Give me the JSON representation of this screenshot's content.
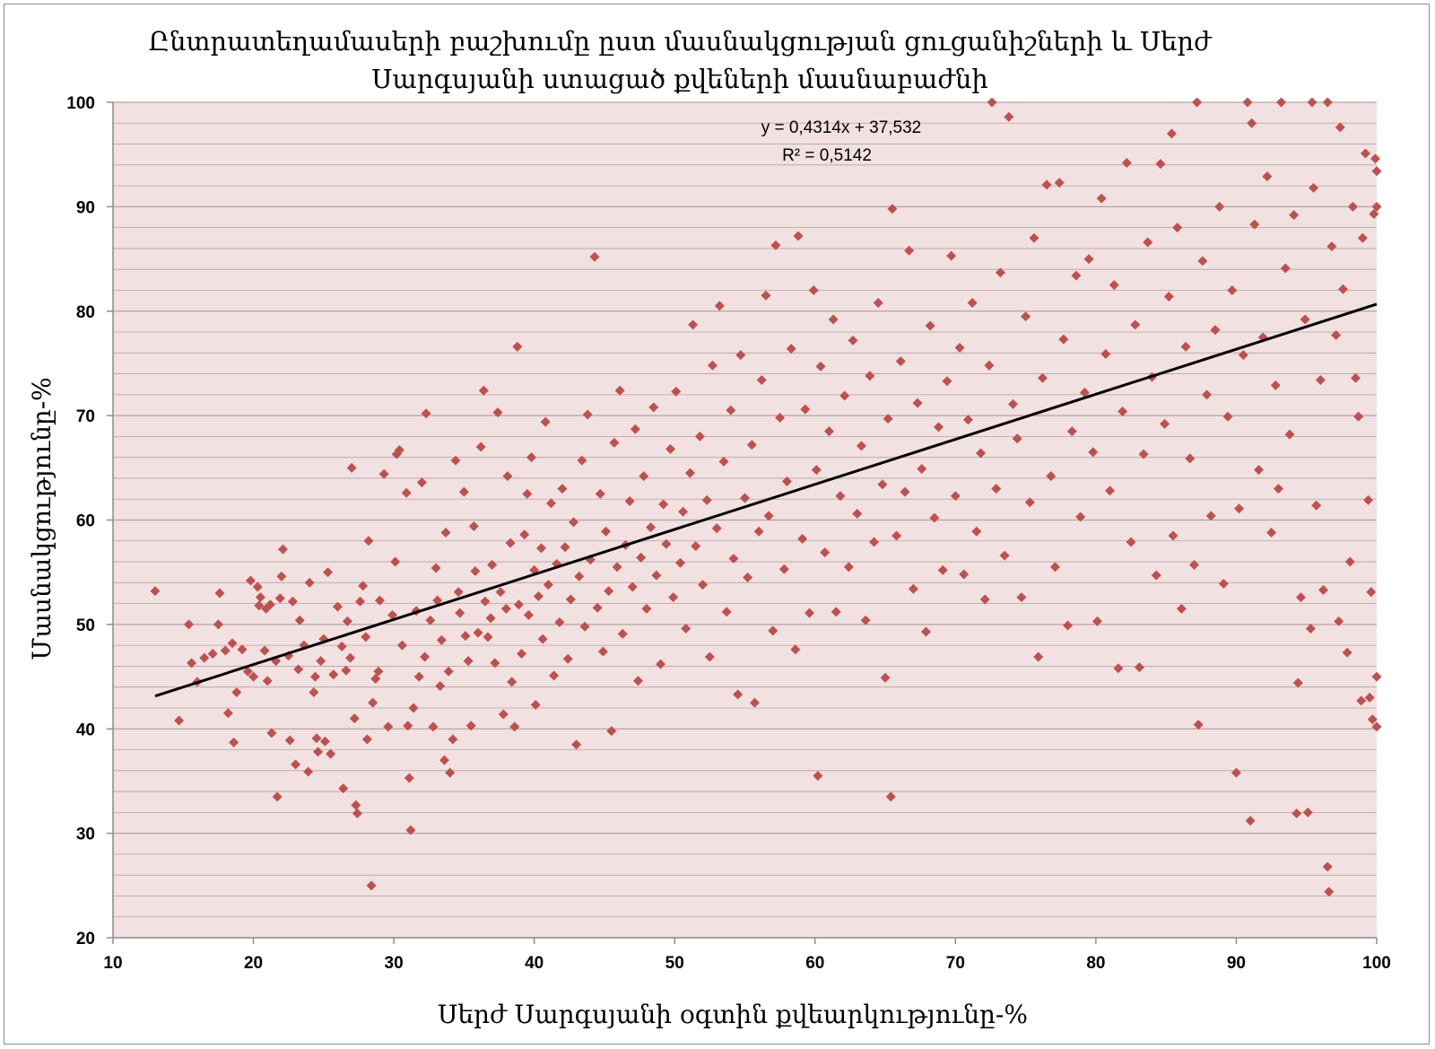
{
  "colors": {
    "plot_background": "#f2e1e1",
    "gridline": "#b5a3a3",
    "marker": "#c0504d",
    "trendline": "#000000",
    "axis": "#8c8c8c"
  },
  "chart_data": {
    "type": "scatter",
    "title": [
      "Ընտրատեղամասերի բաշխումը ըստ մասնակցության ցուցանիշների և Սերժ",
      "Սարգսյանի ստացած քվեների մասնաբաժնի"
    ],
    "xlabel": "Սերժ Սարգսյանի օգտին քվեարկությունը-%",
    "ylabel": "Մասնակցությունը-%",
    "xlim": [
      10,
      100
    ],
    "ylim": [
      20,
      100
    ],
    "xticks": [
      10,
      20,
      30,
      40,
      50,
      60,
      70,
      80,
      90,
      100
    ],
    "yticks": [
      20,
      30,
      40,
      50,
      60,
      70,
      80,
      90,
      100
    ],
    "grid": true,
    "marker": "diamond",
    "trendline": {
      "slope": 0.4314,
      "intercept": 37.532,
      "x_range": [
        13,
        100
      ],
      "equation": "y = 0,4314x + 37,532",
      "r2": "R² = 0,5142"
    },
    "points": [
      [
        13,
        53.2
      ],
      [
        14.7,
        40.8
      ],
      [
        15.4,
        50
      ],
      [
        15.6,
        46.3
      ],
      [
        16,
        44.5
      ],
      [
        16.5,
        46.8
      ],
      [
        17.1,
        47.2
      ],
      [
        17.5,
        50
      ],
      [
        17.6,
        53
      ],
      [
        18,
        47.5
      ],
      [
        18.2,
        41.5
      ],
      [
        18.5,
        48.2
      ],
      [
        18.6,
        38.7
      ],
      [
        18.8,
        43.5
      ],
      [
        19.2,
        47.6
      ],
      [
        19.6,
        45.5
      ],
      [
        19.8,
        54.2
      ],
      [
        20,
        45
      ],
      [
        20.3,
        53.6
      ],
      [
        20.4,
        51.8
      ],
      [
        20.5,
        52.6
      ],
      [
        20.8,
        47.5
      ],
      [
        20.9,
        51.5
      ],
      [
        21,
        44.6
      ],
      [
        21.2,
        51.9
      ],
      [
        21.3,
        39.6
      ],
      [
        21.6,
        46.5
      ],
      [
        21.7,
        33.5
      ],
      [
        21.9,
        52.5
      ],
      [
        22,
        54.6
      ],
      [
        22.1,
        57.2
      ],
      [
        22.5,
        47
      ],
      [
        22.6,
        38.9
      ],
      [
        22.8,
        52.2
      ],
      [
        23,
        36.6
      ],
      [
        23.2,
        45.7
      ],
      [
        23.3,
        50.4
      ],
      [
        23.6,
        48
      ],
      [
        23.9,
        35.9
      ],
      [
        24,
        54
      ],
      [
        24.3,
        43.5
      ],
      [
        24.4,
        45
      ],
      [
        24.5,
        39.1
      ],
      [
        24.6,
        37.8
      ],
      [
        24.8,
        46.5
      ],
      [
        25,
        48.6
      ],
      [
        25.1,
        38.8
      ],
      [
        25.3,
        55
      ],
      [
        25.5,
        37.6
      ],
      [
        25.7,
        45.2
      ],
      [
        26,
        51.7
      ],
      [
        26.3,
        47.9
      ],
      [
        26.4,
        34.3
      ],
      [
        26.6,
        45.6
      ],
      [
        26.7,
        50.3
      ],
      [
        26.9,
        46.8
      ],
      [
        27,
        65
      ],
      [
        27.2,
        41
      ],
      [
        27.3,
        32.7
      ],
      [
        27.4,
        31.9
      ],
      [
        27.6,
        52.2
      ],
      [
        27.8,
        53.7
      ],
      [
        28,
        48.8
      ],
      [
        28.1,
        39
      ],
      [
        28.2,
        58
      ],
      [
        28.4,
        25
      ],
      [
        28.5,
        42.5
      ],
      [
        28.7,
        44.8
      ],
      [
        28.9,
        45.5
      ],
      [
        29,
        52.3
      ],
      [
        29.3,
        64.4
      ],
      [
        29.6,
        40.2
      ],
      [
        29.9,
        50.9
      ],
      [
        30.1,
        56
      ],
      [
        30.2,
        66.3
      ],
      [
        30.4,
        66.7
      ],
      [
        30.6,
        48
      ],
      [
        30.9,
        62.6
      ],
      [
        31,
        40.3
      ],
      [
        31.1,
        35.3
      ],
      [
        31.2,
        30.3
      ],
      [
        31.4,
        42
      ],
      [
        31.6,
        51.3
      ],
      [
        31.8,
        45
      ],
      [
        32,
        63.6
      ],
      [
        32.2,
        46.9
      ],
      [
        32.3,
        70.2
      ],
      [
        32.6,
        50.4
      ],
      [
        32.8,
        40.2
      ],
      [
        33,
        55.4
      ],
      [
        33.1,
        52.3
      ],
      [
        33.3,
        44.1
      ],
      [
        33.4,
        48.5
      ],
      [
        33.6,
        37
      ],
      [
        33.7,
        58.8
      ],
      [
        33.9,
        45.5
      ],
      [
        34,
        35.8
      ],
      [
        34.2,
        39
      ],
      [
        34.4,
        65.7
      ],
      [
        34.6,
        53.1
      ],
      [
        34.7,
        51.1
      ],
      [
        35,
        62.7
      ],
      [
        35.1,
        48.9
      ],
      [
        35.3,
        46.5
      ],
      [
        35.5,
        40.3
      ],
      [
        35.7,
        59.4
      ],
      [
        35.8,
        55.1
      ],
      [
        36,
        49.2
      ],
      [
        36.2,
        67
      ],
      [
        36.4,
        72.4
      ],
      [
        36.5,
        52.2
      ],
      [
        36.7,
        48.8
      ],
      [
        36.9,
        50.6
      ],
      [
        37,
        55.7
      ],
      [
        37.2,
        46.3
      ],
      [
        37.4,
        70.3
      ],
      [
        37.6,
        53.1
      ],
      [
        37.8,
        41.4
      ],
      [
        38,
        51.5
      ],
      [
        38.1,
        64.2
      ],
      [
        38.3,
        57.8
      ],
      [
        38.4,
        44.5
      ],
      [
        38.6,
        40.2
      ],
      [
        38.8,
        76.6
      ],
      [
        38.9,
        51.9
      ],
      [
        39.1,
        47.2
      ],
      [
        39.3,
        58.6
      ],
      [
        39.5,
        62.5
      ],
      [
        39.6,
        50.9
      ],
      [
        39.8,
        66
      ],
      [
        40,
        55.2
      ],
      [
        40.1,
        42.3
      ],
      [
        40.3,
        52.7
      ],
      [
        40.5,
        57.3
      ],
      [
        40.6,
        48.6
      ],
      [
        40.8,
        69.4
      ],
      [
        41,
        53.8
      ],
      [
        41.2,
        61.6
      ],
      [
        41.4,
        45.1
      ],
      [
        41.6,
        55.8
      ],
      [
        41.8,
        50.2
      ],
      [
        42,
        63
      ],
      [
        42.2,
        57.4
      ],
      [
        42.4,
        46.7
      ],
      [
        42.6,
        52.4
      ],
      [
        42.8,
        59.8
      ],
      [
        43,
        38.5
      ],
      [
        43.2,
        54.6
      ],
      [
        43.4,
        65.7
      ],
      [
        43.6,
        49.8
      ],
      [
        43.8,
        70.1
      ],
      [
        44,
        56.2
      ],
      [
        44.3,
        85.2
      ],
      [
        44.5,
        51.6
      ],
      [
        44.7,
        62.5
      ],
      [
        44.9,
        47.4
      ],
      [
        45.1,
        58.9
      ],
      [
        45.3,
        53.2
      ],
      [
        45.5,
        39.8
      ],
      [
        45.7,
        67.4
      ],
      [
        45.9,
        55.5
      ],
      [
        46.1,
        72.4
      ],
      [
        46.3,
        49.1
      ],
      [
        46.5,
        57.6
      ],
      [
        46.8,
        61.8
      ],
      [
        47,
        53.6
      ],
      [
        47.2,
        68.7
      ],
      [
        47.4,
        44.6
      ],
      [
        47.6,
        56.4
      ],
      [
        47.8,
        64.2
      ],
      [
        48,
        51.5
      ],
      [
        48.3,
        59.3
      ],
      [
        48.5,
        70.8
      ],
      [
        48.7,
        54.7
      ],
      [
        49,
        46.2
      ],
      [
        49.2,
        61.5
      ],
      [
        49.4,
        57.7
      ],
      [
        49.7,
        66.8
      ],
      [
        49.9,
        52.6
      ],
      [
        50.1,
        72.3
      ],
      [
        50.4,
        55.9
      ],
      [
        50.6,
        60.8
      ],
      [
        50.8,
        49.6
      ],
      [
        51.1,
        64.5
      ],
      [
        51.3,
        78.7
      ],
      [
        51.5,
        57.5
      ],
      [
        51.8,
        68
      ],
      [
        52,
        53.8
      ],
      [
        52.3,
        61.9
      ],
      [
        52.5,
        46.9
      ],
      [
        52.7,
        74.8
      ],
      [
        53,
        59.2
      ],
      [
        53.2,
        80.5
      ],
      [
        53.5,
        65.6
      ],
      [
        53.7,
        51.2
      ],
      [
        54,
        70.5
      ],
      [
        54.2,
        56.3
      ],
      [
        54.5,
        43.3
      ],
      [
        54.7,
        75.8
      ],
      [
        55,
        62.1
      ],
      [
        55.2,
        54.5
      ],
      [
        55.5,
        67.2
      ],
      [
        55.7,
        42.5
      ],
      [
        56,
        58.9
      ],
      [
        56.2,
        73.4
      ],
      [
        56.5,
        81.5
      ],
      [
        56.7,
        60.4
      ],
      [
        57,
        49.4
      ],
      [
        57.2,
        86.3
      ],
      [
        57.5,
        69.8
      ],
      [
        57.8,
        55.3
      ],
      [
        58,
        63.7
      ],
      [
        58.3,
        76.4
      ],
      [
        58.6,
        47.6
      ],
      [
        58.8,
        87.2
      ],
      [
        59.1,
        58.2
      ],
      [
        59.3,
        70.6
      ],
      [
        59.6,
        51.1
      ],
      [
        59.9,
        82
      ],
      [
        60.1,
        64.8
      ],
      [
        60.2,
        35.5
      ],
      [
        60.4,
        74.7
      ],
      [
        60.7,
        56.9
      ],
      [
        61,
        68.5
      ],
      [
        61.3,
        79.2
      ],
      [
        61.5,
        51.2
      ],
      [
        61.8,
        62.3
      ],
      [
        62.1,
        71.9
      ],
      [
        62.4,
        55.5
      ],
      [
        62.7,
        77.2
      ],
      [
        63,
        60.6
      ],
      [
        63.3,
        67.1
      ],
      [
        63.6,
        50.4
      ],
      [
        63.9,
        73.8
      ],
      [
        64.2,
        57.9
      ],
      [
        64.5,
        80.8
      ],
      [
        64.8,
        63.4
      ],
      [
        65,
        44.9
      ],
      [
        65.2,
        69.7
      ],
      [
        65.4,
        33.5
      ],
      [
        65.5,
        89.8
      ],
      [
        65.8,
        58.5
      ],
      [
        66.1,
        75.2
      ],
      [
        66.4,
        62.7
      ],
      [
        66.7,
        85.8
      ],
      [
        67,
        53.4
      ],
      [
        67.3,
        71.2
      ],
      [
        67.6,
        64.9
      ],
      [
        67.9,
        49.3
      ],
      [
        68.2,
        78.6
      ],
      [
        68.5,
        60.2
      ],
      [
        68.8,
        68.9
      ],
      [
        69.1,
        55.2
      ],
      [
        69.4,
        73.3
      ],
      [
        69.7,
        85.3
      ],
      [
        70,
        62.3
      ],
      [
        70.3,
        76.5
      ],
      [
        70.6,
        54.8
      ],
      [
        70.9,
        69.6
      ],
      [
        71.2,
        80.8
      ],
      [
        71.5,
        58.9
      ],
      [
        71.8,
        66.4
      ],
      [
        72.1,
        52.4
      ],
      [
        72.4,
        74.8
      ],
      [
        72.6,
        100
      ],
      [
        72.9,
        63
      ],
      [
        73.2,
        83.7
      ],
      [
        73.5,
        56.6
      ],
      [
        73.8,
        98.6
      ],
      [
        74.1,
        71.1
      ],
      [
        74.4,
        67.8
      ],
      [
        74.7,
        52.6
      ],
      [
        75,
        79.5
      ],
      [
        75.3,
        61.7
      ],
      [
        75.6,
        87
      ],
      [
        75.9,
        46.9
      ],
      [
        76.2,
        73.6
      ],
      [
        76.5,
        92.1
      ],
      [
        76.8,
        64.2
      ],
      [
        77.1,
        55.5
      ],
      [
        77.4,
        92.3
      ],
      [
        77.7,
        77.3
      ],
      [
        78,
        49.9
      ],
      [
        78.3,
        68.5
      ],
      [
        78.6,
        83.4
      ],
      [
        78.9,
        60.3
      ],
      [
        79.2,
        72.2
      ],
      [
        79.5,
        85
      ],
      [
        79.8,
        66.5
      ],
      [
        80.1,
        50.3
      ],
      [
        80.4,
        90.8
      ],
      [
        80.7,
        75.9
      ],
      [
        81,
        62.8
      ],
      [
        81.3,
        82.5
      ],
      [
        81.6,
        45.8
      ],
      [
        81.9,
        70.4
      ],
      [
        82.2,
        94.2
      ],
      [
        82.5,
        57.9
      ],
      [
        82.8,
        78.7
      ],
      [
        83.1,
        45.9
      ],
      [
        83.4,
        66.3
      ],
      [
        83.7,
        86.6
      ],
      [
        84,
        73.7
      ],
      [
        84.3,
        54.7
      ],
      [
        84.6,
        94.1
      ],
      [
        84.9,
        69.2
      ],
      [
        85.2,
        81.4
      ],
      [
        85.5,
        58.5
      ],
      [
        85.4,
        97
      ],
      [
        85.8,
        88
      ],
      [
        86.1,
        51.5
      ],
      [
        86.4,
        76.6
      ],
      [
        86.7,
        65.9
      ],
      [
        87,
        55.7
      ],
      [
        87.2,
        100
      ],
      [
        87.3,
        40.4
      ],
      [
        87.6,
        84.8
      ],
      [
        87.9,
        72
      ],
      [
        88.2,
        60.4
      ],
      [
        88.5,
        78.2
      ],
      [
        88.8,
        90
      ],
      [
        89.1,
        53.9
      ],
      [
        89.4,
        69.9
      ],
      [
        89.7,
        82
      ],
      [
        90,
        35.8
      ],
      [
        90.2,
        61.1
      ],
      [
        90.5,
        75.8
      ],
      [
        90.8,
        100
      ],
      [
        91,
        31.2
      ],
      [
        91.1,
        98
      ],
      [
        91.3,
        88.3
      ],
      [
        91.6,
        64.8
      ],
      [
        91.9,
        77.5
      ],
      [
        92.2,
        92.9
      ],
      [
        92.5,
        58.8
      ],
      [
        92.8,
        72.9
      ],
      [
        93,
        63
      ],
      [
        93.2,
        100
      ],
      [
        93.5,
        84.1
      ],
      [
        93.8,
        68.2
      ],
      [
        94.1,
        89.2
      ],
      [
        94.3,
        31.9
      ],
      [
        94.4,
        44.4
      ],
      [
        94.6,
        52.6
      ],
      [
        94.9,
        79.2
      ],
      [
        95.1,
        32
      ],
      [
        95.3,
        49.6
      ],
      [
        95.4,
        100
      ],
      [
        95.5,
        91.8
      ],
      [
        95.7,
        61.4
      ],
      [
        96,
        73.4
      ],
      [
        96.2,
        53.3
      ],
      [
        96.5,
        100
      ],
      [
        96.5,
        26.8
      ],
      [
        96.6,
        24.4
      ],
      [
        96.8,
        86.2
      ],
      [
        97.1,
        77.7
      ],
      [
        97.3,
        50.3
      ],
      [
        97.4,
        97.6
      ],
      [
        97.6,
        82.1
      ],
      [
        97.9,
        47.3
      ],
      [
        98.1,
        56
      ],
      [
        98.3,
        90
      ],
      [
        98.5,
        73.6
      ],
      [
        98.7,
        69.9
      ],
      [
        98.9,
        42.7
      ],
      [
        99,
        87
      ],
      [
        99.2,
        95.1
      ],
      [
        99.4,
        61.9
      ],
      [
        99.5,
        43
      ],
      [
        99.6,
        53.1
      ],
      [
        99.7,
        40.9
      ],
      [
        99.8,
        89.3
      ],
      [
        99.9,
        94.6
      ],
      [
        100,
        45
      ],
      [
        100,
        40.2
      ],
      [
        100,
        93.4
      ],
      [
        100,
        90
      ]
    ]
  }
}
